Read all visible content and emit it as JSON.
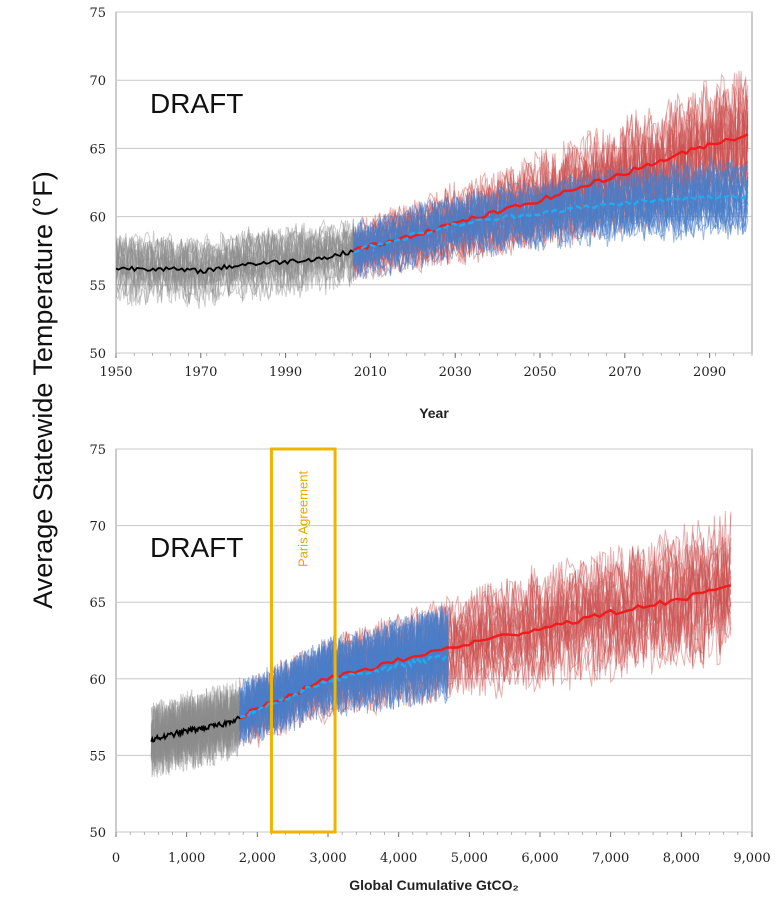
{
  "ylabel": "Average Statewide Temperature (°F)",
  "colors": {
    "historical": "#8c8c8c",
    "historical_mean": "#000000",
    "rcp_high": "#cc5050",
    "rcp_high_mean": "#ee1c1c",
    "rcp_low": "#4a7ec8",
    "rcp_low_mean": "#22aaee",
    "paris": "#f0b400",
    "grid": "#c8c8c8"
  },
  "chart_data": [
    {
      "type": "line",
      "annotation": "DRAFT",
      "xlabel": "Year",
      "xlim": [
        1950,
        2100
      ],
      "ylim": [
        50,
        75
      ],
      "xticks": [
        "1950",
        "1970",
        "1990",
        "2010",
        "2030",
        "2050",
        "2070",
        "2090"
      ],
      "yticks": [
        "50",
        "55",
        "60",
        "65",
        "70",
        "75"
      ],
      "grid": true,
      "series": [
        {
          "role": "historical-ensemble-mean",
          "x": [
            1950,
            1960,
            1970,
            1980,
            1990,
            2000,
            2006
          ],
          "y": [
            56.2,
            56.2,
            56.0,
            56.5,
            56.7,
            57.0,
            57.5
          ]
        },
        {
          "role": "high-emissions-ensemble-mean",
          "x": [
            2006,
            2030,
            2050,
            2070,
            2090,
            2099
          ],
          "y": [
            57.5,
            59.5,
            61.2,
            63.2,
            65.3,
            66.0
          ]
        },
        {
          "role": "low-emissions-ensemble-mean",
          "x": [
            2006,
            2030,
            2050,
            2070,
            2090,
            2099
          ],
          "y": [
            57.5,
            59.4,
            60.3,
            61.0,
            61.4,
            61.5
          ]
        }
      ]
    },
    {
      "type": "line",
      "annotation": "DRAFT",
      "xlabel": "Global Cumulative GtCO₂",
      "xlim": [
        0,
        9000
      ],
      "ylim": [
        50,
        75
      ],
      "xticks": [
        "0",
        "1,000",
        "2,000",
        "3,000",
        "4,000",
        "5,000",
        "6,000",
        "7,000",
        "8,000",
        "9,000"
      ],
      "yticks": [
        "50",
        "55",
        "60",
        "65",
        "70",
        "75"
      ],
      "grid": true,
      "band": {
        "label": "Paris Agreement",
        "x": [
          2200,
          3100
        ]
      },
      "series": [
        {
          "role": "historical-ensemble-mean",
          "x": [
            500,
            1000,
            1500,
            1750
          ],
          "y": [
            56.0,
            56.6,
            57.0,
            57.5
          ]
        },
        {
          "role": "high-emissions-ensemble-mean",
          "x": [
            1750,
            3000,
            4700,
            6000,
            7000,
            8000,
            8700
          ],
          "y": [
            57.5,
            60.0,
            62.0,
            63.3,
            64.3,
            65.2,
            66.0
          ]
        },
        {
          "role": "low-emissions-ensemble-mean",
          "x": [
            1750,
            3000,
            4700
          ],
          "y": [
            57.5,
            59.9,
            61.5
          ]
        }
      ]
    }
  ]
}
